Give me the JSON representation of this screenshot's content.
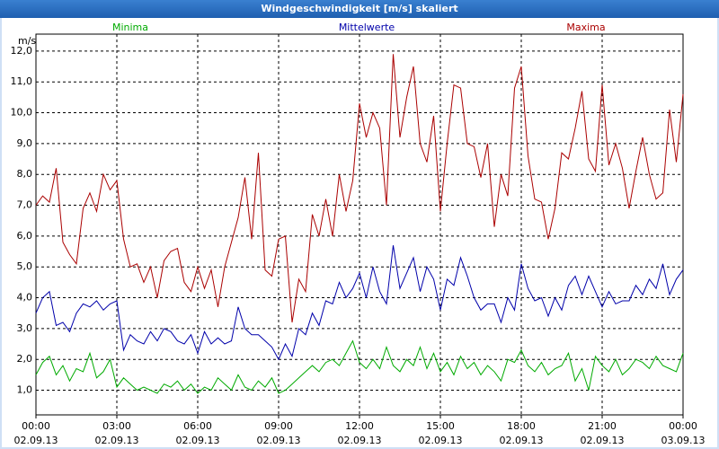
{
  "chart_data": {
    "type": "line",
    "title": "Windgeschwindigkeit [m/s] skaliert",
    "y_label": "m/s",
    "xlim": [
      0,
      24
    ],
    "ylim": [
      0.2,
      12.55
    ],
    "grid": true,
    "legend": "top",
    "yticks": [
      {
        "value": 1,
        "label": "1,0"
      },
      {
        "value": 2,
        "label": "2,0"
      },
      {
        "value": 3,
        "label": "3,0"
      },
      {
        "value": 4,
        "label": "4,0"
      },
      {
        "value": 5,
        "label": "5,0"
      },
      {
        "value": 6,
        "label": "6,0"
      },
      {
        "value": 7,
        "label": "7,0"
      },
      {
        "value": 8,
        "label": "8,0"
      },
      {
        "value": 9,
        "label": "9,0"
      },
      {
        "value": 10,
        "label": "10,0"
      },
      {
        "value": 11,
        "label": "11,0"
      },
      {
        "value": 12,
        "label": "12,0"
      }
    ],
    "xticks": [
      {
        "value": 0,
        "label": "00:00"
      },
      {
        "value": 3,
        "label": "03:00"
      },
      {
        "value": 6,
        "label": "06:00"
      },
      {
        "value": 9,
        "label": "09:00"
      },
      {
        "value": 12,
        "label": "12:00"
      },
      {
        "value": 15,
        "label": "15:00"
      },
      {
        "value": 18,
        "label": "18:00"
      },
      {
        "value": 21,
        "label": "21:00"
      },
      {
        "value": 24,
        "label": "00:00"
      }
    ],
    "xtick_dates": [
      "02.09.13",
      "02.09.13",
      "02.09.13",
      "02.09.13",
      "02.09.13",
      "02.09.13",
      "02.09.13",
      "02.09.13",
      "03.09.13"
    ],
    "x": [
      0,
      0.25,
      0.5,
      0.75,
      1,
      1.25,
      1.5,
      1.75,
      2,
      2.25,
      2.5,
      2.75,
      3,
      3.25,
      3.5,
      3.75,
      4,
      4.25,
      4.5,
      4.75,
      5,
      5.25,
      5.5,
      5.75,
      6,
      6.25,
      6.5,
      6.75,
      7,
      7.25,
      7.5,
      7.75,
      8,
      8.25,
      8.5,
      8.75,
      9,
      9.25,
      9.5,
      9.75,
      10,
      10.25,
      10.5,
      10.75,
      11,
      11.25,
      11.5,
      11.75,
      12,
      12.25,
      12.5,
      12.75,
      13,
      13.25,
      13.5,
      13.75,
      14,
      14.25,
      14.5,
      14.75,
      15,
      15.25,
      15.5,
      15.75,
      16,
      16.25,
      16.5,
      16.75,
      17,
      17.25,
      17.5,
      17.75,
      18,
      18.25,
      18.5,
      18.75,
      19,
      19.25,
      19.5,
      19.75,
      20,
      20.25,
      20.5,
      20.75,
      21,
      21.25,
      21.5,
      21.75,
      22,
      22.25,
      22.5,
      22.75,
      23,
      23.25,
      23.5,
      23.75,
      24
    ],
    "series": [
      {
        "name": "Minima",
        "color": "#00aa00",
        "values": [
          1.5,
          1.9,
          2.1,
          1.5,
          1.8,
          1.3,
          1.7,
          1.6,
          2.2,
          1.4,
          1.6,
          2.0,
          1.1,
          1.4,
          1.2,
          1.0,
          1.1,
          1.0,
          0.9,
          1.2,
          1.1,
          1.3,
          1.0,
          1.2,
          0.9,
          1.1,
          1.0,
          1.4,
          1.2,
          1.0,
          1.5,
          1.1,
          1.0,
          1.3,
          1.1,
          1.4,
          0.9,
          1.0,
          1.2,
          1.4,
          1.6,
          1.8,
          1.6,
          1.9,
          2.0,
          1.8,
          2.2,
          2.6,
          1.9,
          1.7,
          2.0,
          1.7,
          2.4,
          1.8,
          1.6,
          2.0,
          1.8,
          2.4,
          1.7,
          2.2,
          1.6,
          1.9,
          1.5,
          2.1,
          1.7,
          1.9,
          1.5,
          1.8,
          1.6,
          1.3,
          2.0,
          1.9,
          2.3,
          1.8,
          1.6,
          1.9,
          1.5,
          1.7,
          1.8,
          2.2,
          1.3,
          1.7,
          1.0,
          2.1,
          1.8,
          1.6,
          2.0,
          1.5,
          1.7,
          2.0,
          1.9,
          1.7,
          2.1,
          1.8,
          1.7,
          1.6,
          2.2
        ]
      },
      {
        "name": "Mittelwerte",
        "color": "#0000aa",
        "values": [
          3.5,
          4.0,
          4.2,
          3.1,
          3.2,
          2.9,
          3.5,
          3.8,
          3.7,
          3.9,
          3.6,
          3.8,
          3.9,
          2.3,
          2.8,
          2.6,
          2.5,
          2.9,
          2.6,
          3.0,
          2.9,
          2.6,
          2.5,
          2.8,
          2.2,
          2.9,
          2.5,
          2.7,
          2.5,
          2.6,
          3.7,
          3.0,
          2.8,
          2.8,
          2.6,
          2.4,
          2.0,
          2.5,
          2.1,
          3.0,
          2.8,
          3.5,
          3.1,
          3.9,
          3.8,
          4.5,
          4.0,
          4.3,
          4.8,
          4.0,
          5.0,
          4.2,
          3.8,
          5.7,
          4.3,
          4.8,
          5.3,
          4.2,
          5.0,
          4.6,
          3.6,
          4.6,
          4.4,
          5.3,
          4.7,
          4.0,
          3.6,
          3.8,
          3.8,
          3.2,
          4.0,
          3.6,
          5.1,
          4.3,
          3.9,
          4.0,
          3.4,
          4.0,
          3.6,
          4.4,
          4.7,
          4.1,
          4.7,
          4.2,
          3.7,
          4.2,
          3.8,
          3.9,
          3.9,
          4.4,
          4.1,
          4.6,
          4.3,
          5.1,
          4.1,
          4.6,
          4.9
        ]
      },
      {
        "name": "Maxima",
        "color": "#aa0000",
        "values": [
          7.0,
          7.3,
          7.1,
          8.2,
          5.8,
          5.4,
          5.1,
          6.9,
          7.4,
          6.8,
          8.0,
          7.5,
          7.8,
          5.9,
          5.0,
          5.1,
          4.5,
          5.0,
          4.0,
          5.2,
          5.5,
          5.6,
          4.5,
          4.2,
          5.0,
          4.3,
          4.9,
          3.7,
          5.0,
          5.8,
          6.6,
          7.9,
          5.9,
          8.7,
          4.9,
          4.7,
          5.9,
          6.0,
          3.2,
          4.6,
          4.2,
          6.7,
          6.0,
          7.2,
          6.0,
          8.0,
          6.8,
          7.8,
          10.3,
          9.2,
          10.0,
          9.5,
          7.0,
          11.9,
          9.2,
          10.5,
          11.5,
          9.0,
          8.4,
          9.9,
          6.8,
          9.0,
          10.9,
          10.8,
          9.0,
          8.9,
          7.9,
          9.0,
          6.3,
          8.0,
          7.3,
          10.8,
          11.5,
          8.6,
          7.2,
          7.1,
          5.9,
          6.9,
          8.7,
          8.5,
          9.5,
          10.7,
          8.5,
          8.1,
          10.9,
          8.3,
          9.0,
          8.2,
          6.9,
          8.1,
          9.2,
          8.0,
          7.2,
          7.4,
          10.1,
          8.4,
          10.6
        ]
      }
    ]
  }
}
